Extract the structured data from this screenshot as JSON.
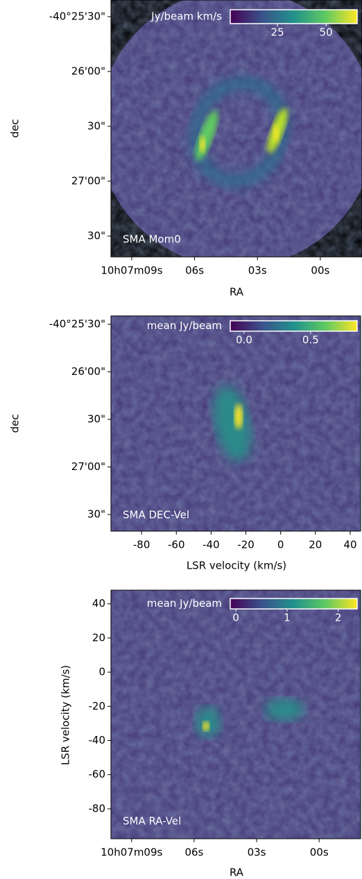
{
  "chart_data": [
    {
      "type": "image",
      "annotation": "SMA Mom0",
      "xlabel": "RA",
      "ylabel": "dec",
      "xlim": [
        9.99,
        -1.99
      ],
      "xticks": [
        {
          "value": 9,
          "label": "10h07m09s"
        },
        {
          "value": 6,
          "label": "06s"
        },
        {
          "value": 3,
          "label": "03s"
        },
        {
          "value": 0,
          "label": "00s"
        }
      ],
      "ylim": [
        -145661.4,
        -145520.9
      ],
      "yticks": [
        {
          "value": -145530,
          "label": "-40°25'30\""
        },
        {
          "value": -145560,
          "label": "26'00\""
        },
        {
          "value": -145590,
          "label": "30\""
        },
        {
          "value": -145620,
          "label": "27'00\""
        },
        {
          "value": -145650,
          "label": "30\""
        }
      ],
      "colorbar": {
        "label": "Jy/beam km/s",
        "lim": [
          0.7,
          66
        ],
        "ticks": [
          25,
          50
        ]
      }
    },
    {
      "type": "image",
      "annotation": "SMA DEC-Vel",
      "xlabel": "LSR velocity (km/s)",
      "ylabel": "dec",
      "xlim": [
        -97.6,
        46
      ],
      "xticks": [
        -80,
        -60,
        -40,
        -20,
        0,
        20,
        40
      ],
      "ylim": [
        -145660.5,
        -145524.7
      ],
      "yticks": [
        {
          "value": -145530,
          "label": "-40°25'30\""
        },
        {
          "value": -145560,
          "label": "26'00\""
        },
        {
          "value": -145590,
          "label": "30\""
        },
        {
          "value": -145620,
          "label": "27'00\""
        },
        {
          "value": -145650,
          "label": "30\""
        }
      ],
      "colorbar": {
        "label": "mean Jy/beam",
        "lim": [
          -0.104,
          0.85
        ],
        "ticks": [
          {
            "value": 0,
            "label": "0.0"
          },
          0.5
        ]
      }
    },
    {
      "type": "image",
      "annotation": "SMA RA-Vel",
      "xlabel": "RA",
      "ylabel": "LSR velocity (km/s)",
      "xlim": [
        9.99,
        -1.99
      ],
      "xticks": [
        {
          "value": 9,
          "label": "10h07m09s"
        },
        {
          "value": 6,
          "label": "06s"
        },
        {
          "value": 3,
          "label": "03s"
        },
        {
          "value": 0,
          "label": "00s"
        }
      ],
      "ylim": [
        -97.5,
        48
      ],
      "yticks": [
        40,
        20,
        0,
        -20,
        -40,
        -60,
        -80
      ],
      "colorbar": {
        "label": "mean Jy/beam",
        "lim": [
          -0.11,
          2.37
        ],
        "ticks": [
          0,
          1,
          2
        ]
      }
    }
  ]
}
